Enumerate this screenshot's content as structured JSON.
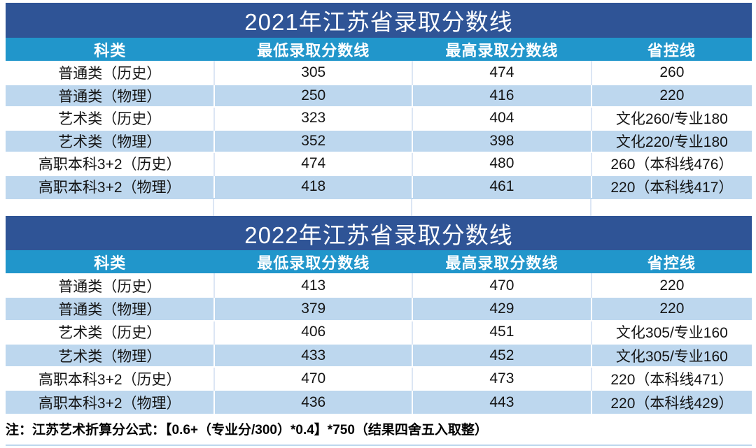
{
  "colors": {
    "title_bg": "#2F5496",
    "header_bg": "#2196CB",
    "alt_row_bg": "#BDD7EE",
    "grid_line": "#DCE6F4"
  },
  "tables": [
    {
      "title": "2021年江苏省录取分数线",
      "headers": [
        "科类",
        "最低录取分数线",
        "最高录取分数线",
        "省控线"
      ],
      "rows": [
        [
          "普通类（历史）",
          "305",
          "474",
          "260"
        ],
        [
          "普通类（物理）",
          "250",
          "416",
          "220"
        ],
        [
          "艺术类（历史）",
          "323",
          "404",
          "文化260/专业180"
        ],
        [
          "艺术类（物理）",
          "352",
          "398",
          "文化220/专业180"
        ],
        [
          "高职本科3+2（历史）",
          "474",
          "480",
          "260（本科线476）"
        ],
        [
          "高职本科3+2（物理）",
          "418",
          "461",
          "220（本科线417）"
        ]
      ]
    },
    {
      "title": "2022年江苏省录取分数线",
      "headers": [
        "科类",
        "最低录取分数线",
        "最高录取分数线",
        "省控线"
      ],
      "rows": [
        [
          "普通类（历史）",
          "413",
          "470",
          "220"
        ],
        [
          "普通类（物理）",
          "379",
          "429",
          "220"
        ],
        [
          "艺术类（历史）",
          "406",
          "451",
          "文化305/专业160"
        ],
        [
          "艺术类（物理）",
          "433",
          "452",
          "文化305/专业160"
        ],
        [
          "高职本科3+2（历史）",
          "470",
          "473",
          "220（本科线471）"
        ],
        [
          "高职本科3+2（物理）",
          "436",
          "443",
          "220（本科线429）"
        ]
      ]
    }
  ],
  "footnote": "注：江苏艺术折算分公式：【0.6+（专业分/300）*0.4】*750（结果四舍五入取整）"
}
